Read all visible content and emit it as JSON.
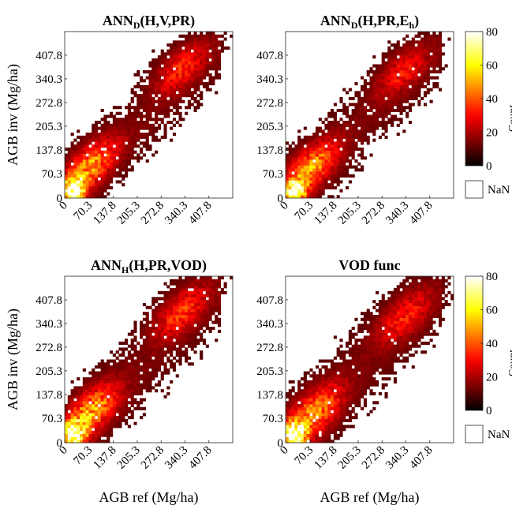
{
  "chart_data": [
    {
      "type": "heatmap",
      "title": "ANN",
      "title_sub": "D",
      "title_rest": "(H,V,PR)",
      "xlabel": "",
      "ylabel": "AGB inv (Mg/ha)",
      "xlim": [
        0,
        475.3
      ],
      "ylim": [
        0,
        475.3
      ],
      "ticks": [
        0,
        70.3,
        137.8,
        205.3,
        272.8,
        340.3,
        407.8
      ],
      "tick_labels": [
        "0",
        "70.3",
        "137.8",
        "205.3",
        "272.8",
        "340.3",
        "407.8"
      ],
      "clusters": [
        {
          "x": 25,
          "y": 25,
          "peak": 80
        },
        {
          "x": 70.3,
          "y": 90,
          "peak": 35
        },
        {
          "x": 330,
          "y": 370,
          "peak": 18
        }
      ],
      "spread": 1.0,
      "seed": 11
    },
    {
      "type": "heatmap",
      "title": "ANN",
      "title_sub": "D",
      "title_rest": "(H,PR,E",
      "title_sub2": "h",
      "title_end": ")",
      "xlabel": "",
      "ylabel": "",
      "xlim": [
        0,
        475.3
      ],
      "ylim": [
        0,
        475.3
      ],
      "ticks": [
        0,
        70.3,
        137.8,
        205.3,
        272.8,
        340.3,
        407.8
      ],
      "tick_labels": [
        "0",
        "70.3",
        "137.8",
        "205.3",
        "272.8",
        "340.3",
        "407.8"
      ],
      "clusters": [
        {
          "x": 25,
          "y": 22,
          "peak": 70
        },
        {
          "x": 70.3,
          "y": 85,
          "peak": 35
        },
        {
          "x": 330,
          "y": 360,
          "peak": 15
        }
      ],
      "spread": 1.0,
      "seed": 23
    },
    {
      "type": "heatmap",
      "title": "ANN",
      "title_sub": "H",
      "title_rest": "(H,PR,VOD)",
      "xlabel": "AGB ref (Mg/ha)",
      "ylabel": "AGB inv (Mg/ha)",
      "xlim": [
        0,
        475.3
      ],
      "ylim": [
        0,
        475.3
      ],
      "ticks": [
        0,
        70.3,
        137.8,
        205.3,
        272.8,
        340.3,
        407.8
      ],
      "tick_labels": [
        "0",
        "70.3",
        "137.8",
        "205.3",
        "272.8",
        "340.3",
        "407.8"
      ],
      "clusters": [
        {
          "x": 25,
          "y": 25,
          "peak": 80
        },
        {
          "x": 70.3,
          "y": 85,
          "peak": 38
        },
        {
          "x": 330,
          "y": 375,
          "peak": 20
        }
      ],
      "spread": 1.05,
      "seed": 37
    },
    {
      "type": "heatmap",
      "title": "VOD func",
      "xlabel": "AGB ref (Mg/ha)",
      "ylabel": "",
      "xlim": [
        0,
        475.3
      ],
      "ylim": [
        0,
        475.3
      ],
      "ticks": [
        0,
        70.3,
        137.8,
        205.3,
        272.8,
        340.3,
        407.8
      ],
      "tick_labels": [
        "0",
        "70.3",
        "137.8",
        "205.3",
        "272.8",
        "340.3",
        "407.8"
      ],
      "clusters": [
        {
          "x": 25,
          "y": 25,
          "peak": 80
        },
        {
          "x": 75,
          "y": 80,
          "peak": 32
        },
        {
          "x": 335,
          "y": 360,
          "peak": 16
        }
      ],
      "spread": 1.1,
      "seed": 53
    }
  ],
  "colorbar": {
    "label": "Count",
    "range": [
      0,
      80
    ],
    "ticks": [
      0,
      20,
      40,
      60,
      80
    ],
    "tick_labels": [
      "0",
      "20",
      "40",
      "60",
      "80"
    ],
    "nan_label": "NaN",
    "colormap": "hot"
  }
}
